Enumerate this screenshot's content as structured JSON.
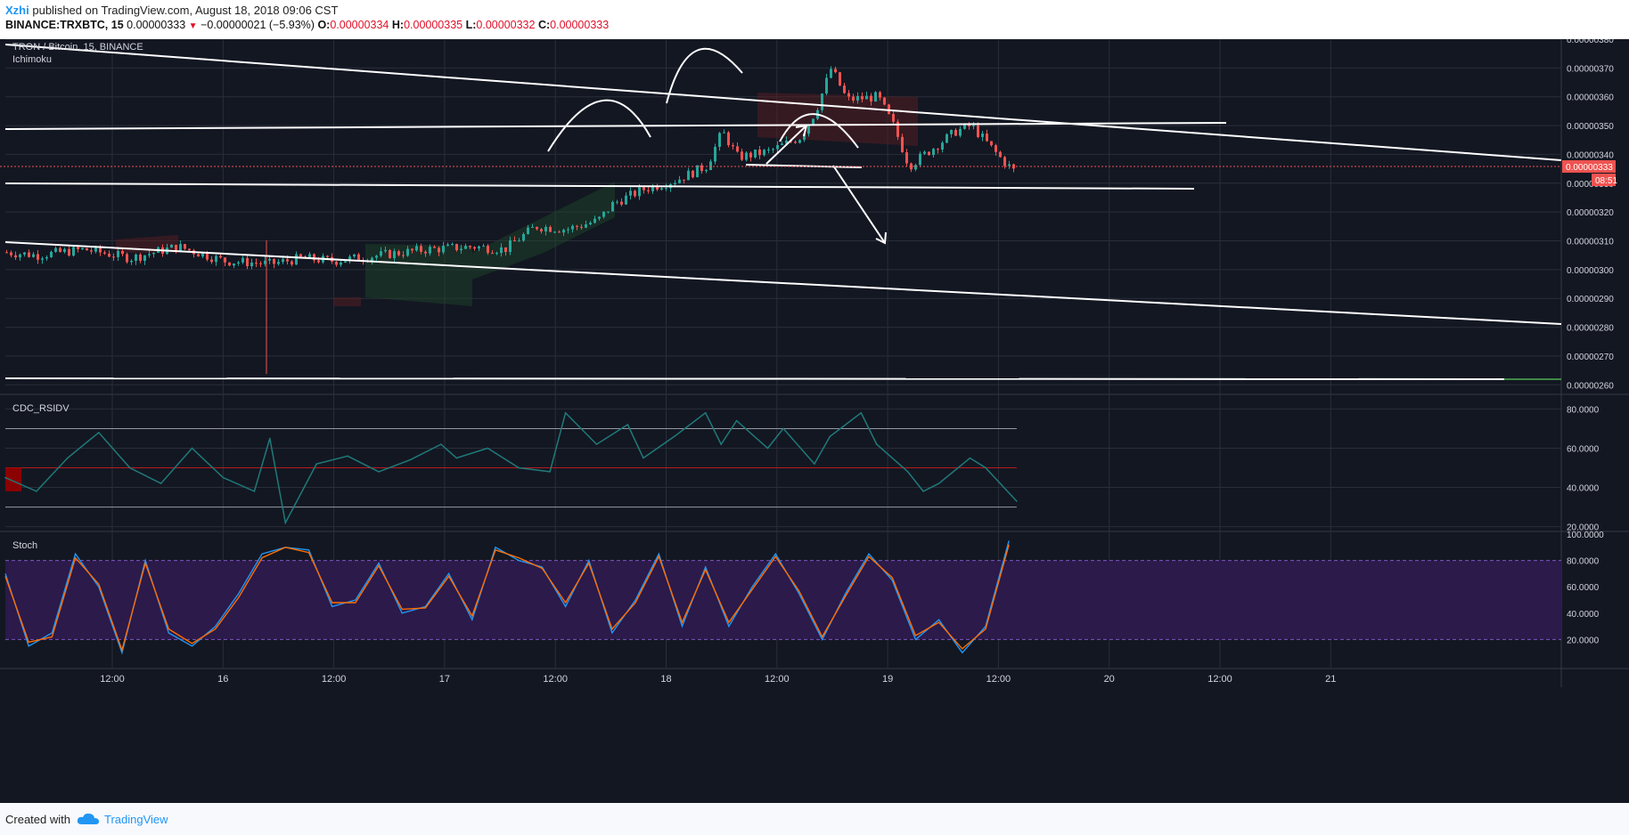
{
  "header": {
    "author": "Xzhi",
    "published": "published on TradingView.com, August 18, 2018 09:06 CST",
    "symbol": "BINANCE:TRXBTC, 15",
    "last": "0.00000333",
    "change_arrow": "▼",
    "change": "−0.00000021 (−5.93%)",
    "o_label": "O:",
    "o_value": "0.00000334",
    "h_label": "H:",
    "h_value": "0.00000335",
    "l_label": "L:",
    "l_value": "0.00000332",
    "c_label": "C:",
    "c_value": "0.00000333"
  },
  "footer": {
    "created_with": "Created with",
    "brand": "TradingView"
  },
  "colors": {
    "background": "#131722",
    "grid": "#2a2e39",
    "axis_text": "#d1d4dc",
    "up": "#26a69a",
    "down": "#ef5350",
    "drawing": "#ffffff",
    "stoch_band": "#2b1a4a",
    "stoch_k": "#2196f3",
    "stoch_d": "#ff6d00",
    "rsi_line": "#1f7a7a",
    "price_tag": "#ef5350"
  },
  "chart_data": [
    {
      "type": "candlestick",
      "title": "TRON / Bitcoin, 15, BINANCE",
      "indicator": "Ichimoku",
      "y_ticks": [
        "0.00000380",
        "0.00000370",
        "0.00000360",
        "0.00000350",
        "0.00000340",
        "0.00000330",
        "0.00000320",
        "0.00000310",
        "0.00000300",
        "0.00000290",
        "0.00000280",
        "0.00000270",
        "0.00000260"
      ],
      "ylim": [
        2.57e-06,
        3.8e-06
      ],
      "x_ticks": [
        "12:00",
        "16",
        "12:00",
        "17",
        "12:00",
        "18",
        "12:00",
        "19",
        "12:00",
        "20",
        "12:00",
        "21"
      ],
      "last_price_label": "0.00000333",
      "countdown_label": "08:51",
      "price_path": [
        [
          0,
          3.06e-06
        ],
        [
          0.02,
          3.05e-06
        ],
        [
          0.05,
          3.07e-06
        ],
        [
          0.08,
          3.04e-06
        ],
        [
          0.11,
          3.08e-06
        ],
        [
          0.14,
          3.03e-06
        ],
        [
          0.17,
          3.02e-06
        ],
        [
          0.19,
          3.04e-06
        ],
        [
          0.21,
          3.03e-06
        ],
        [
          0.24,
          3.05e-06
        ],
        [
          0.27,
          3.07e-06
        ],
        [
          0.3,
          3.08e-06
        ],
        [
          0.32,
          3.07e-06
        ],
        [
          0.34,
          3.15e-06
        ],
        [
          0.36,
          3.14e-06
        ],
        [
          0.38,
          3.17e-06
        ],
        [
          0.39,
          3.23e-06
        ],
        [
          0.41,
          3.28e-06
        ],
        [
          0.43,
          3.31e-06
        ],
        [
          0.45,
          3.36e-06
        ],
        [
          0.46,
          3.48e-06
        ],
        [
          0.47,
          3.39e-06
        ],
        [
          0.49,
          3.41e-06
        ],
        [
          0.51,
          3.46e-06
        ],
        [
          0.52,
          3.55e-06
        ],
        [
          0.53,
          3.7e-06
        ],
        [
          0.54,
          3.59e-06
        ],
        [
          0.56,
          3.6e-06
        ],
        [
          0.57,
          3.5e-06
        ],
        [
          0.58,
          3.36e-06
        ],
        [
          0.6,
          3.44e-06
        ],
        [
          0.61,
          3.48e-06
        ],
        [
          0.62,
          3.5e-06
        ],
        [
          0.63,
          3.44e-06
        ],
        [
          0.64,
          3.38e-06
        ],
        [
          0.65,
          3.33e-06
        ]
      ]
    },
    {
      "type": "line",
      "title": "CDC_RSIDV",
      "y_ticks": [
        "80.0000",
        "60.0000",
        "40.0000",
        "20.0000"
      ],
      "ylim": [
        18,
        87
      ],
      "bands": [
        30,
        50,
        70
      ],
      "x": [
        0,
        0.02,
        0.04,
        0.06,
        0.08,
        0.1,
        0.12,
        0.14,
        0.16,
        0.17,
        0.18,
        0.2,
        0.22,
        0.24,
        0.26,
        0.28,
        0.29,
        0.31,
        0.33,
        0.35,
        0.36,
        0.38,
        0.4,
        0.41,
        0.43,
        0.45,
        0.46,
        0.47,
        0.49,
        0.5,
        0.52,
        0.53,
        0.55,
        0.56,
        0.58,
        0.59,
        0.6,
        0.62,
        0.63,
        0.65
      ],
      "values": [
        45,
        38,
        55,
        68,
        50,
        42,
        60,
        45,
        38,
        65,
        22,
        52,
        56,
        48,
        54,
        62,
        55,
        60,
        50,
        48,
        78,
        62,
        72,
        55,
        66,
        78,
        62,
        74,
        60,
        70,
        52,
        66,
        78,
        62,
        48,
        38,
        42,
        55,
        50,
        33
      ]
    },
    {
      "type": "line",
      "title": "Stoch",
      "y_ticks": [
        "100.0000",
        "80.0000",
        "60.0000",
        "40.0000",
        "20.0000"
      ],
      "ylim": [
        0,
        100
      ],
      "bands": [
        20,
        80
      ],
      "x": [
        0,
        0.015,
        0.03,
        0.045,
        0.06,
        0.075,
        0.09,
        0.105,
        0.12,
        0.135,
        0.15,
        0.165,
        0.18,
        0.195,
        0.21,
        0.225,
        0.24,
        0.255,
        0.27,
        0.285,
        0.3,
        0.315,
        0.33,
        0.345,
        0.36,
        0.375,
        0.39,
        0.405,
        0.42,
        0.435,
        0.45,
        0.465,
        0.48,
        0.495,
        0.51,
        0.525,
        0.54,
        0.555,
        0.57,
        0.585,
        0.6,
        0.615,
        0.63,
        0.645
      ],
      "series": [
        {
          "values": [
            70,
            15,
            25,
            85,
            60,
            10,
            80,
            25,
            15,
            30,
            55,
            85,
            90,
            88,
            45,
            50,
            78,
            40,
            45,
            70,
            35,
            90,
            80,
            75,
            45,
            80,
            25,
            50,
            85,
            30,
            75,
            30,
            60,
            85,
            55,
            20,
            55,
            85,
            65,
            20,
            35,
            10,
            30,
            95
          ]
        },
        {
          "values": [
            68,
            18,
            22,
            82,
            62,
            12,
            78,
            28,
            17,
            28,
            52,
            82,
            90,
            86,
            48,
            48,
            76,
            43,
            44,
            68,
            38,
            88,
            82,
            74,
            48,
            78,
            28,
            48,
            83,
            33,
            73,
            33,
            58,
            83,
            57,
            22,
            53,
            83,
            67,
            23,
            33,
            13,
            28,
            92
          ]
        }
      ]
    }
  ]
}
